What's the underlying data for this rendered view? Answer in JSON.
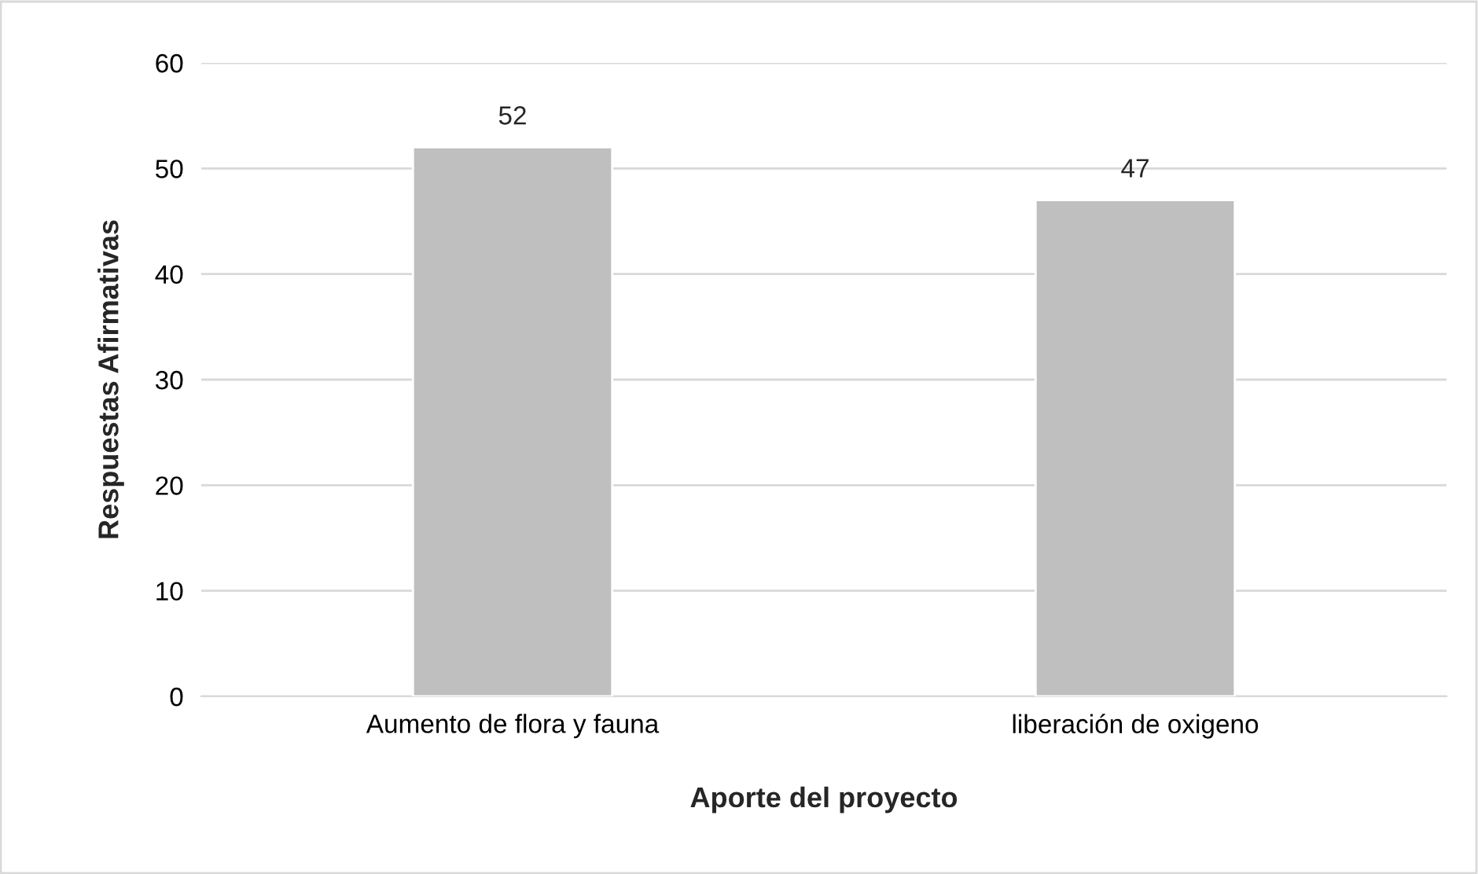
{
  "chart_data": {
    "type": "bar",
    "xlabel": "Aporte del proyecto",
    "ylabel": "Respuestas Afirmativas",
    "categories": [
      "Aumento de flora y fauna",
      "liberación de oxigeno"
    ],
    "values": [
      52,
      47
    ],
    "color": "#bfbfbf",
    "ylim": [
      0,
      60
    ],
    "yticks": [
      0,
      10,
      20,
      30,
      40,
      50,
      60
    ],
    "grid": "y",
    "data_labels": true,
    "legend": false
  }
}
